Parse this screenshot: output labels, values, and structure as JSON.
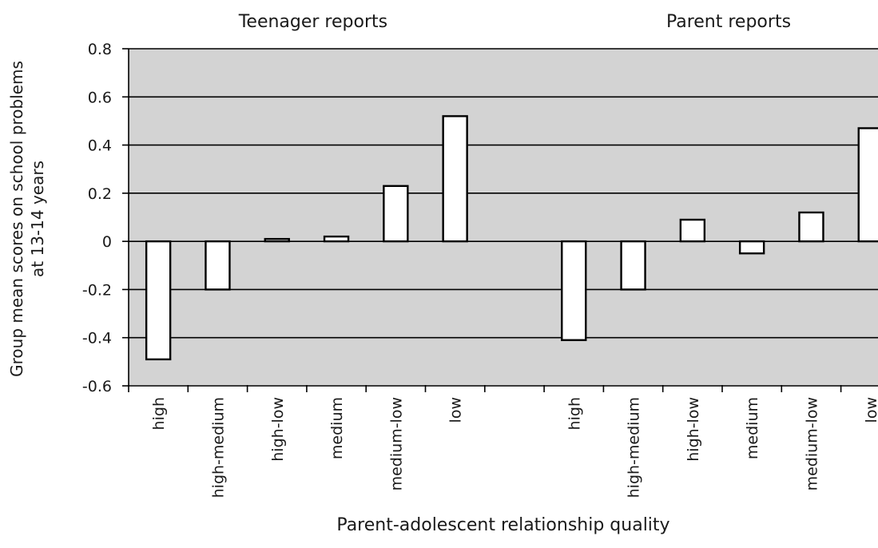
{
  "chart_data": {
    "type": "bar",
    "xlabel": "Parent-adolescent relationship quality",
    "ylabel": [
      "Group mean scores on school problems",
      "at 13-14 years"
    ],
    "ylim": [
      -0.6,
      0.8
    ],
    "yticks": [
      "0.8",
      "0.6",
      "0.4",
      "0.2",
      "0",
      "-0.2",
      "-0.4",
      "-0.6"
    ],
    "ytick_values": [
      0.8,
      0.6,
      0.4,
      0.2,
      0,
      -0.2,
      -0.4,
      -0.6
    ],
    "grid": true,
    "plot_background": "#d3d3d3",
    "bar_fill": "#ffffff",
    "bar_stroke": "#000000",
    "groups": [
      {
        "title": "Teenager reports",
        "categories": [
          "high",
          "high-medium",
          "high-low",
          "medium",
          "medium-low",
          "low"
        ],
        "values": [
          -0.49,
          -0.2,
          0.01,
          0.02,
          0.23,
          0.52
        ]
      },
      {
        "title": "Parent reports",
        "categories": [
          "high",
          "high-medium",
          "high-low",
          "medium",
          "medium-low",
          "low"
        ],
        "values": [
          -0.41,
          -0.2,
          0.09,
          -0.05,
          0.12,
          0.47
        ]
      }
    ]
  }
}
